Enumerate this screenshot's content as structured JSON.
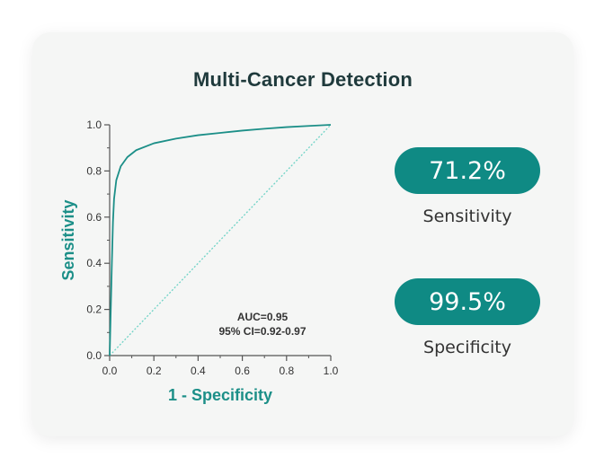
{
  "chart_data": {
    "type": "line",
    "title": "Multi-Cancer Detection",
    "xlabel": "1 - Specificity",
    "ylabel": "Sensitivity",
    "xlim": [
      0.0,
      1.0
    ],
    "ylim": [
      0.0,
      1.0
    ],
    "x_ticks": [
      "0.0",
      "0.2",
      "0.4",
      "0.6",
      "0.8",
      "1.0"
    ],
    "y_ticks": [
      "0.0",
      "0.2",
      "0.4",
      "0.6",
      "0.8",
      "1.0"
    ],
    "series": [
      {
        "name": "",
        "style": "solid",
        "x": [
          0.0,
          0.01,
          0.015,
          0.02,
          0.03,
          0.05,
          0.08,
          0.12,
          0.2,
          0.3,
          0.4,
          0.5,
          0.6,
          0.7,
          0.8,
          0.9,
          1.0
        ],
        "y": [
          0.0,
          0.4,
          0.58,
          0.68,
          0.76,
          0.82,
          0.86,
          0.89,
          0.92,
          0.94,
          0.955,
          0.965,
          0.975,
          0.983,
          0.99,
          0.995,
          1.0
        ]
      },
      {
        "name": "",
        "style": "dotted",
        "x": [
          0.0,
          1.0
        ],
        "y": [
          0.0,
          1.0
        ]
      }
    ],
    "annotations": [
      "AUC=0.95",
      "95% CI=0.92-0.97"
    ],
    "grid": false,
    "colors": {
      "roc_line": "#1c8f88",
      "diagonal": "#6fd3c6",
      "axis": "#555555",
      "axis_label": "#1c8f88"
    }
  },
  "stats": [
    {
      "value": "71.2%",
      "label": "Sensitivity"
    },
    {
      "value": "99.5%",
      "label": "Specificity"
    }
  ],
  "colors": {
    "pill": "#0f8a84",
    "title": "#1f3a3c",
    "card": "#f5f6f5"
  }
}
